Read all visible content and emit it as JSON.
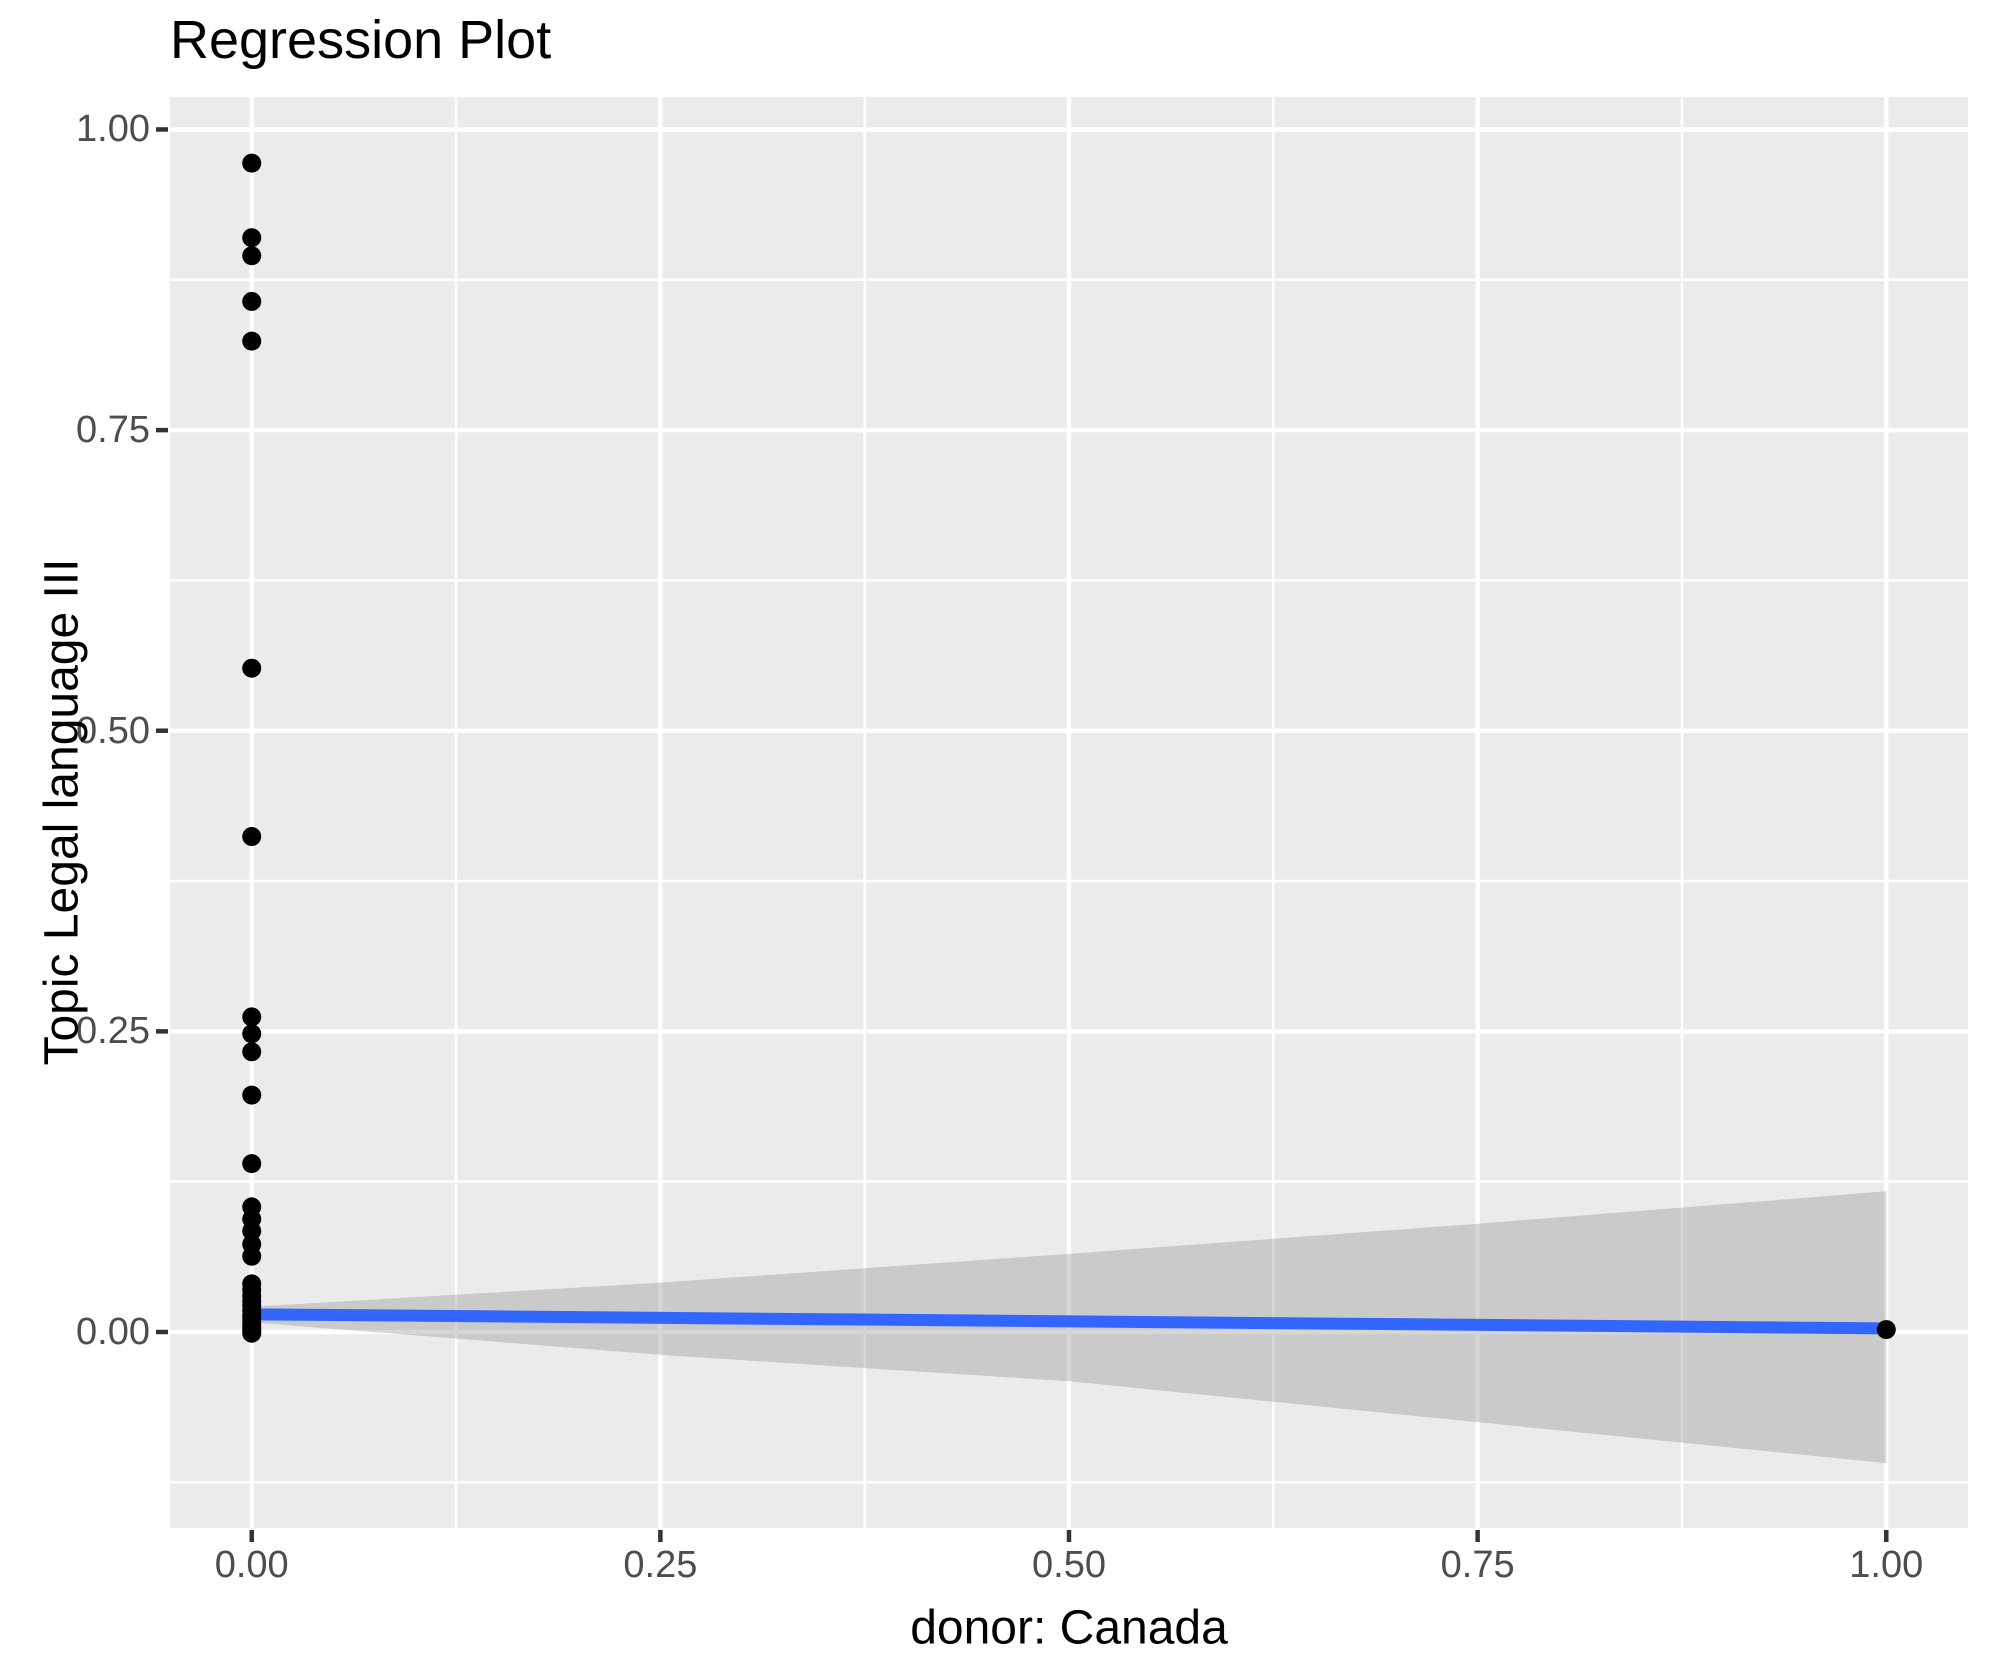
{
  "title": "Regression Plot",
  "x_axis": {
    "title": "donor: Canada",
    "tick_labels": [
      "0.00",
      "0.25",
      "0.50",
      "0.75",
      "1.00"
    ]
  },
  "y_axis": {
    "title": "Topic Legal language III",
    "tick_labels": [
      "0.00",
      "0.25",
      "0.50",
      "0.75",
      "1.00"
    ]
  },
  "colors": {
    "panel_bg": "#EBEBEB",
    "grid": "#FFFFFF",
    "point": "#000000",
    "line": "#3366FF",
    "band": "#999999",
    "band_opacity": 0.4,
    "tick": "#333333",
    "tick_label": "#4D4D4D",
    "title": "#000000"
  },
  "chart_data": {
    "type": "scatter",
    "title": "Regression Plot",
    "xlabel": "donor: Canada",
    "ylabel": "Topic Legal language III",
    "grid": true,
    "legend": "none",
    "xlim": [
      0,
      1
    ],
    "ylim": [
      0,
      1
    ],
    "xlim_expanded": [
      -0.05,
      1.05
    ],
    "ylim_expanded": [
      -0.163,
      1.027
    ],
    "x_ticks": {
      "values": [
        0,
        0.25,
        0.5,
        0.75,
        1.0
      ],
      "labels": [
        "0.00",
        "0.25",
        "0.50",
        "0.75",
        "1.00"
      ]
    },
    "y_ticks": {
      "values": [
        0,
        0.25,
        0.5,
        0.75,
        1.0
      ],
      "labels": [
        "0.00",
        "0.25",
        "0.50",
        "0.75",
        "1.00"
      ]
    },
    "x_minor": [
      0.125,
      0.375,
      0.625,
      0.875
    ],
    "y_minor": [
      -0.125,
      0.125,
      0.375,
      0.625,
      0.875
    ],
    "points": [
      [
        0,
        0.972
      ],
      [
        0,
        0.91
      ],
      [
        0,
        0.895
      ],
      [
        0,
        0.857
      ],
      [
        0,
        0.824
      ],
      [
        0,
        0.552
      ],
      [
        0,
        0.412
      ],
      [
        0,
        0.262
      ],
      [
        0,
        0.248
      ],
      [
        0,
        0.233
      ],
      [
        0,
        0.197
      ],
      [
        0,
        0.14
      ],
      [
        0,
        0.104
      ],
      [
        0,
        0.094
      ],
      [
        0,
        0.084
      ],
      [
        0,
        0.073
      ],
      [
        0,
        0.063
      ],
      [
        0,
        0.04
      ],
      [
        0,
        0.035
      ],
      [
        0,
        0.03
      ],
      [
        0,
        0.026
      ],
      [
        0,
        0.022
      ],
      [
        0,
        0.018
      ],
      [
        0,
        0.014
      ],
      [
        0,
        0.011
      ],
      [
        0,
        0.008
      ],
      [
        0,
        0.005
      ],
      [
        0,
        0.003
      ],
      [
        0,
        0.001
      ],
      [
        0,
        -0.001
      ],
      [
        1,
        0.002
      ]
    ],
    "regression_line": {
      "x": [
        0,
        1
      ],
      "y": [
        0.0147,
        0.003
      ]
    },
    "confidence_band": {
      "x": [
        0,
        0.25,
        0.5,
        0.75,
        1.0
      ],
      "upper": [
        0.021,
        0.041,
        0.065,
        0.09,
        0.117
      ],
      "lower": [
        0.008,
        -0.019,
        -0.041,
        -0.075,
        -0.109
      ]
    }
  }
}
